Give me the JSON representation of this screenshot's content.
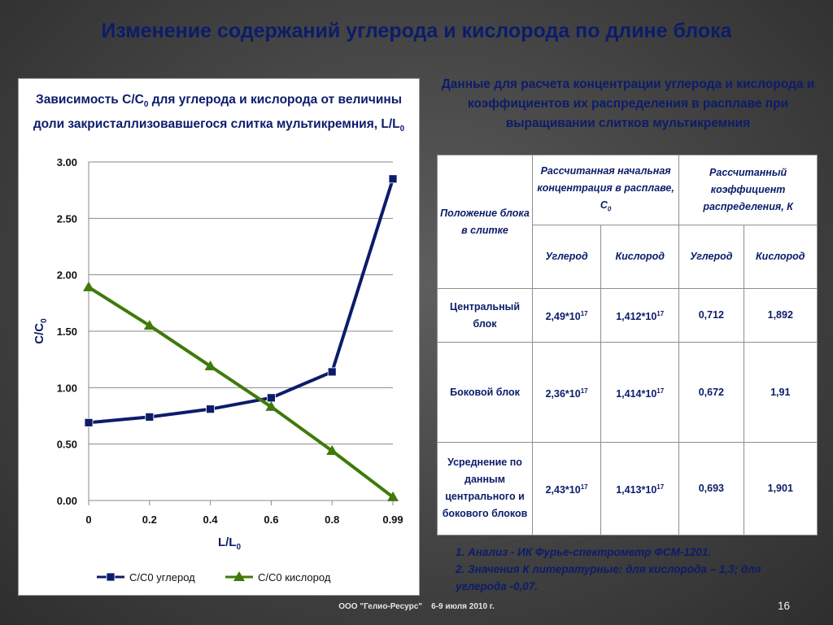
{
  "slide": {
    "title": "Изменение содержаний углерода и кислорода по длине блока",
    "footer": "ООО \"Гелио-Ресурс\"    6-9 июля 2010 г.",
    "page_number": "16"
  },
  "chart_data": {
    "type": "line",
    "title_parts": [
      "Зависимость С/С",
      "0",
      " для углерода и кислорода от величины доли закристаллизовавшегося слитка мультикремния, L/L",
      "0"
    ],
    "xlabel_parts": [
      "L/L",
      "0"
    ],
    "ylabel_parts": [
      "C/C",
      "0"
    ],
    "categories": [
      "0",
      "0.2",
      "0.4",
      "0.6",
      "0.8",
      "0.99"
    ],
    "yticks": [
      "0.00",
      "0.50",
      "1.00",
      "1.50",
      "2.00",
      "2.50",
      "3.00"
    ],
    "ylim": [
      0,
      3
    ],
    "grid": "horizontal",
    "legend_position": "bottom",
    "series": [
      {
        "name": "C/C0 углерод",
        "marker": "square",
        "color": "#0c1c6a",
        "values": [
          0.69,
          0.74,
          0.81,
          0.91,
          1.14,
          2.85
        ]
      },
      {
        "name": "C/C0 кислород",
        "marker": "triangle",
        "color": "#3f7a0b",
        "values": [
          1.89,
          1.55,
          1.19,
          0.83,
          0.44,
          0.03
        ]
      }
    ]
  },
  "table": {
    "heading": "Данные для расчета концентрации углерода и кислорода и коэффициентов их распределения в расплаве при выращивании слитков мультикремния",
    "col_position": "Положение блока в слитке",
    "col_concentration": "Рассчитанная начальная концентрация в расплаве, С",
    "col_concentration_sub": "0",
    "col_coefficient": "Рассчитанный коэффициент распределения, К",
    "sub_carbon": "Углерод",
    "sub_oxygen": "Кислород",
    "rows": [
      {
        "position": "Центральный блок",
        "c_carbon": "2,49*10",
        "c_carbon_exp": "17",
        "c_oxygen": "1,412*10",
        "c_oxygen_exp": "17",
        "k_carbon": "0,712",
        "k_oxygen": "1,892"
      },
      {
        "position": "Боковой блок",
        "c_carbon": "2,36*10",
        "c_carbon_exp": "17",
        "c_oxygen": "1,414*10",
        "c_oxygen_exp": "17",
        "k_carbon": "0,672",
        "k_oxygen": "1,91"
      },
      {
        "position": "Усреднение по данным центрального и бокового блоков",
        "c_carbon": "2,43*10",
        "c_carbon_exp": "17",
        "c_oxygen": "1,413*10",
        "c_oxygen_exp": "17",
        "k_carbon": "0,693",
        "k_oxygen": "1,901"
      }
    ]
  },
  "notes": [
    "1.  Анализ - ИК Фурье-спектрометр ФСМ-1201.",
    "2.  Значения К литературные: для кислорода – 1,3; для углерода -0,07."
  ]
}
